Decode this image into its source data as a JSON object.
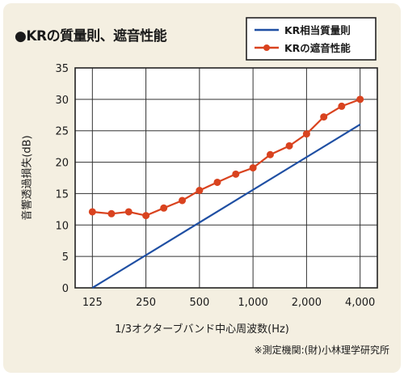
{
  "title": "●KRの質量則、遮音性能",
  "note": "※測定機関:(財)小林理学研究所",
  "colors": {
    "blue": "#1f4fa3",
    "red": "#d9431f",
    "grid": "#333333",
    "background": "#f4efe1"
  },
  "chart_data": {
    "type": "line",
    "xlabel": "1/3オクターブバンド中心周波数(Hz)",
    "ylabel": "音響透過損失(dB)",
    "ylim": [
      0,
      35
    ],
    "yticks": [
      0,
      5,
      10,
      15,
      20,
      25,
      30,
      35
    ],
    "xlim": [
      100,
      5000
    ],
    "xscale": "log",
    "xticks": [
      125,
      250,
      500,
      1000,
      2000,
      4000
    ],
    "xtick_labels": [
      "125",
      "250",
      "500",
      "1,000",
      "2,000",
      "4,000"
    ],
    "grid": true,
    "legend_position": "top-right",
    "series": [
      {
        "name": "KR相当質量則",
        "color": "#1f4fa3",
        "marker": "none",
        "x": [
          125,
          4000
        ],
        "y": [
          0,
          26
        ]
      },
      {
        "name": "KRの遮音性能",
        "color": "#d9431f",
        "marker": "circle",
        "x": [
          125,
          160,
          200,
          250,
          315,
          400,
          500,
          630,
          800,
          1000,
          1250,
          1600,
          2000,
          2500,
          3150,
          4000
        ],
        "y": [
          12.1,
          11.8,
          12.1,
          11.5,
          12.7,
          13.9,
          15.5,
          16.8,
          18.1,
          19.1,
          21.2,
          22.6,
          24.5,
          27.2,
          28.9,
          30.0
        ]
      }
    ]
  }
}
